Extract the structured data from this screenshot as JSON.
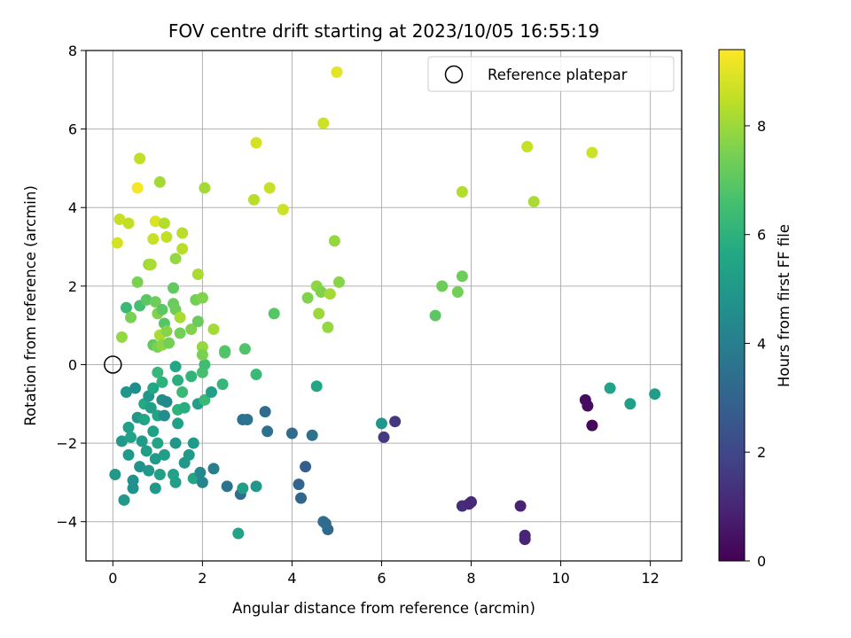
{
  "chart_data": {
    "type": "scatter",
    "title": "FOV centre drift starting at 2023/10/05 16:55:19",
    "xlabel": "Angular distance from reference (arcmin)",
    "ylabel": "Rotation from reference (arcmin)",
    "xlim": [
      -0.6,
      12.7
    ],
    "ylim": [
      -5.0,
      8.0
    ],
    "xticks": [
      0,
      2,
      4,
      6,
      8,
      10,
      12
    ],
    "yticks": [
      -4,
      -2,
      0,
      2,
      4,
      6,
      8
    ],
    "grid": true,
    "legend": {
      "placement": "upper-right",
      "entries": [
        "Reference platepar"
      ]
    },
    "reference_point": {
      "x": 0,
      "y": 0
    },
    "colorbar": {
      "label": "Hours from first FF file",
      "range": [
        0,
        9.4
      ],
      "ticks": [
        0,
        2,
        4,
        6,
        8
      ],
      "colormap": "viridis"
    },
    "points": [
      {
        "x": 0.05,
        "y": -2.8,
        "h": 5.0
      },
      {
        "x": 0.2,
        "y": -1.95,
        "h": 5.0
      },
      {
        "x": 0.25,
        "y": -3.45,
        "h": 5.0
      },
      {
        "x": 0.3,
        "y": -0.7,
        "h": 4.9
      },
      {
        "x": 0.35,
        "y": -2.3,
        "h": 5.1
      },
      {
        "x": 0.35,
        "y": -1.6,
        "h": 5.3
      },
      {
        "x": 0.4,
        "y": -1.85,
        "h": 5.4
      },
      {
        "x": 0.45,
        "y": -2.95,
        "h": 4.7
      },
      {
        "x": 0.45,
        "y": -3.15,
        "h": 4.8
      },
      {
        "x": 0.5,
        "y": -0.6,
        "h": 4.6
      },
      {
        "x": 0.55,
        "y": -1.35,
        "h": 5.0
      },
      {
        "x": 0.6,
        "y": -2.6,
        "h": 4.8
      },
      {
        "x": 0.65,
        "y": -1.95,
        "h": 5.1
      },
      {
        "x": 0.7,
        "y": -1.0,
        "h": 5.7
      },
      {
        "x": 0.7,
        "y": -1.4,
        "h": 5.5
      },
      {
        "x": 0.75,
        "y": -2.2,
        "h": 5.2
      },
      {
        "x": 0.8,
        "y": -0.8,
        "h": 4.9
      },
      {
        "x": 0.8,
        "y": -2.7,
        "h": 5.0
      },
      {
        "x": 0.85,
        "y": -1.1,
        "h": 5.2
      },
      {
        "x": 0.9,
        "y": -0.6,
        "h": 5.6
      },
      {
        "x": 0.9,
        "y": -1.7,
        "h": 5.3
      },
      {
        "x": 0.95,
        "y": -2.4,
        "h": 5.1
      },
      {
        "x": 0.95,
        "y": -3.15,
        "h": 5.0
      },
      {
        "x": 1.0,
        "y": -0.2,
        "h": 6.2
      },
      {
        "x": 1.0,
        "y": -1.3,
        "h": 5.4
      },
      {
        "x": 1.0,
        "y": -2.0,
        "h": 5.5
      },
      {
        "x": 1.05,
        "y": -2.8,
        "h": 5.3
      },
      {
        "x": 1.1,
        "y": -0.45,
        "h": 6.0
      },
      {
        "x": 1.1,
        "y": -0.9,
        "h": 4.6
      },
      {
        "x": 1.15,
        "y": -1.3,
        "h": 4.5
      },
      {
        "x": 1.15,
        "y": -2.3,
        "h": 5.2
      },
      {
        "x": 1.2,
        "y": -0.95,
        "h": 4.4
      },
      {
        "x": 1.35,
        "y": -2.8,
        "h": 5.4
      },
      {
        "x": 1.4,
        "y": -3.0,
        "h": 5.3
      },
      {
        "x": 1.4,
        "y": -0.05,
        "h": 5.6
      },
      {
        "x": 1.45,
        "y": -0.4,
        "h": 5.9
      },
      {
        "x": 1.45,
        "y": -1.15,
        "h": 6.0
      },
      {
        "x": 1.4,
        "y": -2.0,
        "h": 4.9
      },
      {
        "x": 1.45,
        "y": -1.5,
        "h": 5.3
      },
      {
        "x": 1.55,
        "y": -0.7,
        "h": 6.3
      },
      {
        "x": 1.6,
        "y": -1.1,
        "h": 5.8
      },
      {
        "x": 1.6,
        "y": -2.5,
        "h": 5.0
      },
      {
        "x": 1.7,
        "y": -2.3,
        "h": 5.1
      },
      {
        "x": 1.75,
        "y": -0.3,
        "h": 6.1
      },
      {
        "x": 1.8,
        "y": -2.0,
        "h": 5.1
      },
      {
        "x": 1.8,
        "y": -2.9,
        "h": 5.5
      },
      {
        "x": 1.9,
        "y": -1.0,
        "h": 5.3
      },
      {
        "x": 1.95,
        "y": -2.75,
        "h": 4.4
      },
      {
        "x": 2.0,
        "y": -3.0,
        "h": 4.2
      },
      {
        "x": 2.0,
        "y": -0.2,
        "h": 6.6
      },
      {
        "x": 2.05,
        "y": 0.0,
        "h": 6.5
      },
      {
        "x": 2.05,
        "y": -0.9,
        "h": 6.3
      },
      {
        "x": 2.2,
        "y": -0.7,
        "h": 5.3
      },
      {
        "x": 2.25,
        "y": -2.65,
        "h": 4.0
      },
      {
        "x": 2.45,
        "y": -0.5,
        "h": 6.2
      },
      {
        "x": 2.55,
        "y": -3.1,
        "h": 3.6
      },
      {
        "x": 2.8,
        "y": -4.3,
        "h": 5.4
      },
      {
        "x": 2.85,
        "y": -3.3,
        "h": 3.3
      },
      {
        "x": 2.9,
        "y": -3.15,
        "h": 5.2
      },
      {
        "x": 2.9,
        "y": -1.4,
        "h": 3.5
      },
      {
        "x": 3.0,
        "y": -1.4,
        "h": 3.6
      },
      {
        "x": 3.2,
        "y": -3.1,
        "h": 5.0
      },
      {
        "x": 3.4,
        "y": -1.2,
        "h": 3.3
      },
      {
        "x": 3.45,
        "y": -1.7,
        "h": 3.5
      },
      {
        "x": 3.2,
        "y": -0.25,
        "h": 6.3
      },
      {
        "x": 4.0,
        "y": -1.75,
        "h": 3.3
      },
      {
        "x": 4.15,
        "y": -3.05,
        "h": 3.0
      },
      {
        "x": 4.2,
        "y": -3.4,
        "h": 3.1
      },
      {
        "x": 4.3,
        "y": -2.6,
        "h": 2.8
      },
      {
        "x": 4.45,
        "y": -1.8,
        "h": 3.5
      },
      {
        "x": 4.55,
        "y": -0.55,
        "h": 5.6
      },
      {
        "x": 4.7,
        "y": -4.0,
        "h": 3.4
      },
      {
        "x": 4.8,
        "y": -4.2,
        "h": 3.2
      },
      {
        "x": 4.75,
        "y": -4.05,
        "h": 3.3
      },
      {
        "x": 6.0,
        "y": -1.5,
        "h": 4.9
      },
      {
        "x": 6.05,
        "y": -1.85,
        "h": 1.6
      },
      {
        "x": 6.3,
        "y": -1.45,
        "h": 1.5
      },
      {
        "x": 7.8,
        "y": -3.6,
        "h": 1.2
      },
      {
        "x": 7.95,
        "y": -3.55,
        "h": 1.1
      },
      {
        "x": 8.0,
        "y": -3.5,
        "h": 1.1
      },
      {
        "x": 9.1,
        "y": -3.6,
        "h": 0.9
      },
      {
        "x": 9.2,
        "y": -4.35,
        "h": 1.0
      },
      {
        "x": 9.2,
        "y": -4.45,
        "h": 1.0
      },
      {
        "x": 10.55,
        "y": -0.9,
        "h": 0.3
      },
      {
        "x": 10.6,
        "y": -1.05,
        "h": 0.3
      },
      {
        "x": 10.7,
        "y": -1.55,
        "h": 0.2
      },
      {
        "x": 11.1,
        "y": -0.6,
        "h": 5.4
      },
      {
        "x": 11.55,
        "y": -1.0,
        "h": 5.3
      },
      {
        "x": 12.1,
        "y": -0.75,
        "h": 5.2
      },
      {
        "x": 0.1,
        "y": 3.1,
        "h": 8.8
      },
      {
        "x": 0.15,
        "y": 3.7,
        "h": 8.6
      },
      {
        "x": 0.2,
        "y": 0.7,
        "h": 7.9
      },
      {
        "x": 0.3,
        "y": 1.45,
        "h": 6.3
      },
      {
        "x": 0.35,
        "y": 3.6,
        "h": 8.5
      },
      {
        "x": 0.4,
        "y": 1.2,
        "h": 7.5
      },
      {
        "x": 0.55,
        "y": 2.1,
        "h": 7.5
      },
      {
        "x": 0.55,
        "y": 4.5,
        "h": 9.3
      },
      {
        "x": 0.6,
        "y": 5.25,
        "h": 8.5
      },
      {
        "x": 0.6,
        "y": 1.5,
        "h": 6.6
      },
      {
        "x": 0.75,
        "y": 1.65,
        "h": 7.0
      },
      {
        "x": 0.8,
        "y": 2.55,
        "h": 7.9
      },
      {
        "x": 0.85,
        "y": 2.55,
        "h": 8.2
      },
      {
        "x": 0.9,
        "y": 3.2,
        "h": 8.6
      },
      {
        "x": 0.9,
        "y": 0.5,
        "h": 7.1
      },
      {
        "x": 0.95,
        "y": 3.65,
        "h": 8.9
      },
      {
        "x": 0.95,
        "y": 1.6,
        "h": 7.3
      },
      {
        "x": 1.0,
        "y": 1.3,
        "h": 7.6
      },
      {
        "x": 1.0,
        "y": 0.45,
        "h": 7.5
      },
      {
        "x": 1.05,
        "y": 0.75,
        "h": 8.2
      },
      {
        "x": 1.05,
        "y": 4.65,
        "h": 8.1
      },
      {
        "x": 1.1,
        "y": 1.4,
        "h": 7.0
      },
      {
        "x": 1.1,
        "y": 0.5,
        "h": 7.8
      },
      {
        "x": 1.15,
        "y": 1.05,
        "h": 6.9
      },
      {
        "x": 1.15,
        "y": 3.6,
        "h": 8.3
      },
      {
        "x": 1.2,
        "y": 3.25,
        "h": 8.5
      },
      {
        "x": 1.2,
        "y": 0.85,
        "h": 7.7
      },
      {
        "x": 1.25,
        "y": 0.55,
        "h": 7.4
      },
      {
        "x": 1.35,
        "y": 1.95,
        "h": 7.1
      },
      {
        "x": 1.35,
        "y": 1.55,
        "h": 7.2
      },
      {
        "x": 1.4,
        "y": 1.4,
        "h": 7.3
      },
      {
        "x": 1.4,
        "y": 2.7,
        "h": 7.9
      },
      {
        "x": 1.5,
        "y": 1.2,
        "h": 8.2
      },
      {
        "x": 1.5,
        "y": 0.8,
        "h": 7.4
      },
      {
        "x": 1.55,
        "y": 3.35,
        "h": 8.4
      },
      {
        "x": 1.55,
        "y": 2.95,
        "h": 8.4
      },
      {
        "x": 1.75,
        "y": 0.9,
        "h": 7.6
      },
      {
        "x": 1.85,
        "y": 1.65,
        "h": 7.4
      },
      {
        "x": 1.9,
        "y": 2.3,
        "h": 8.2
      },
      {
        "x": 1.9,
        "y": 1.1,
        "h": 7.2
      },
      {
        "x": 2.0,
        "y": 1.7,
        "h": 7.6
      },
      {
        "x": 2.0,
        "y": 0.45,
        "h": 7.9
      },
      {
        "x": 2.0,
        "y": 0.25,
        "h": 7.5
      },
      {
        "x": 2.05,
        "y": 4.5,
        "h": 8.1
      },
      {
        "x": 2.25,
        "y": 0.9,
        "h": 8.1
      },
      {
        "x": 2.5,
        "y": 0.35,
        "h": 7.0
      },
      {
        "x": 2.5,
        "y": 0.3,
        "h": 6.8
      },
      {
        "x": 2.95,
        "y": 0.4,
        "h": 6.8
      },
      {
        "x": 3.15,
        "y": 4.2,
        "h": 8.4
      },
      {
        "x": 3.2,
        "y": 5.65,
        "h": 8.8
      },
      {
        "x": 3.5,
        "y": 4.5,
        "h": 8.6
      },
      {
        "x": 3.6,
        "y": 1.3,
        "h": 6.9
      },
      {
        "x": 3.8,
        "y": 3.95,
        "h": 8.7
      },
      {
        "x": 4.35,
        "y": 1.7,
        "h": 7.6
      },
      {
        "x": 4.55,
        "y": 2.0,
        "h": 7.8
      },
      {
        "x": 4.6,
        "y": 1.3,
        "h": 8.0
      },
      {
        "x": 4.65,
        "y": 1.85,
        "h": 7.6
      },
      {
        "x": 4.7,
        "y": 6.15,
        "h": 8.7
      },
      {
        "x": 4.8,
        "y": 0.95,
        "h": 7.9
      },
      {
        "x": 4.85,
        "y": 1.8,
        "h": 8.1
      },
      {
        "x": 4.95,
        "y": 3.15,
        "h": 7.9
      },
      {
        "x": 5.0,
        "y": 7.45,
        "h": 9.0
      },
      {
        "x": 5.05,
        "y": 2.1,
        "h": 7.7
      },
      {
        "x": 7.2,
        "y": 1.25,
        "h": 7.0
      },
      {
        "x": 7.35,
        "y": 2.0,
        "h": 7.3
      },
      {
        "x": 7.7,
        "y": 1.85,
        "h": 7.4
      },
      {
        "x": 7.8,
        "y": 2.25,
        "h": 7.3
      },
      {
        "x": 7.8,
        "y": 4.4,
        "h": 8.3
      },
      {
        "x": 9.25,
        "y": 5.55,
        "h": 8.6
      },
      {
        "x": 9.4,
        "y": 4.15,
        "h": 8.2
      },
      {
        "x": 10.7,
        "y": 5.4,
        "h": 8.7
      }
    ]
  }
}
